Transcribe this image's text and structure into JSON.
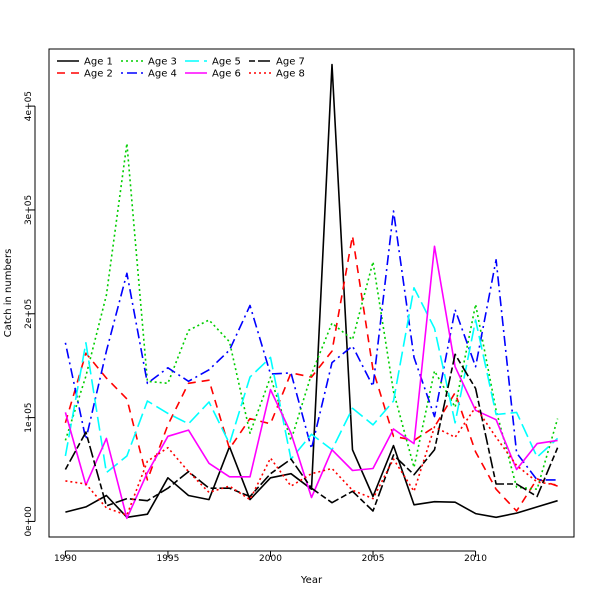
{
  "chart_data": {
    "type": "line",
    "title": "",
    "xlabel": "Year",
    "ylabel": "Catch in numbers",
    "xlim": [
      1989.2,
      2014.8
    ],
    "ylim": [
      -15000,
      455000
    ],
    "x_ticks": [
      1990,
      1995,
      2000,
      2005,
      2010
    ],
    "x_tick_labels": [
      "1990",
      "1995",
      "2000",
      "2005",
      "2010"
    ],
    "y_ticks": [
      0,
      100000,
      200000,
      300000,
      400000
    ],
    "y_tick_labels": [
      "0e+00",
      "1e+05",
      "2e+05",
      "3e+05",
      "4e+05"
    ],
    "legend_position": "top-left",
    "x": [
      1990,
      1991,
      1992,
      1993,
      1994,
      1995,
      1996,
      1997,
      1998,
      1999,
      2000,
      2001,
      2002,
      2003,
      2004,
      2005,
      2006,
      2007,
      2008,
      2009,
      2010,
      2011,
      2012,
      2013,
      2014
    ],
    "series": [
      {
        "name": "Age 1",
        "color": "#000000",
        "dash": "solid",
        "values": [
          9000,
          14000,
          25000,
          4000,
          7000,
          42000,
          25000,
          21000,
          72000,
          21000,
          42000,
          46000,
          31000,
          440000,
          69000,
          24000,
          73000,
          16000,
          19000,
          18500,
          7500,
          4000,
          8000,
          14000,
          20000
        ]
      },
      {
        "name": "Age 2",
        "color": "#ff0000",
        "dash": "dashed",
        "values": [
          95000,
          162000,
          138000,
          118000,
          40000,
          93000,
          133000,
          136000,
          70000,
          99000,
          94000,
          143000,
          139000,
          164000,
          275000,
          146000,
          82000,
          78000,
          91000,
          124000,
          67000,
          31000,
          10000,
          41000,
          34000
        ]
      },
      {
        "name": "Age 3",
        "color": "#00cd00",
        "dash": "dotted",
        "values": [
          78000,
          140000,
          218000,
          364000,
          135000,
          133000,
          184000,
          194000,
          173000,
          85000,
          139000,
          78000,
          142000,
          191000,
          175000,
          250000,
          125000,
          52000,
          145000,
          110000,
          209000,
          107000,
          33000,
          31000,
          99000
        ]
      },
      {
        "name": "Age 4",
        "color": "#0000ff",
        "dash": "dotdash",
        "values": [
          172000,
          79000,
          164000,
          239000,
          133000,
          148000,
          135000,
          146000,
          165000,
          208000,
          142000,
          143000,
          70000,
          153000,
          169000,
          130000,
          299000,
          158000,
          101000,
          204000,
          149000,
          252000,
          66000,
          40000,
          40000
        ]
      },
      {
        "name": "Age 5",
        "color": "#00ffff",
        "dash": "longdash",
        "values": [
          63000,
          172000,
          47000,
          63000,
          116000,
          104000,
          94000,
          115000,
          75000,
          139000,
          158000,
          60000,
          84000,
          69000,
          109000,
          93000,
          116000,
          225000,
          186000,
          95000,
          194000,
          103000,
          105000,
          62000,
          80000
        ]
      },
      {
        "name": "Age 6",
        "color": "#ff00ff",
        "dash": "solid",
        "values": [
          105000,
          35000,
          80000,
          3000,
          47000,
          82000,
          88000,
          56000,
          43000,
          43000,
          127000,
          85000,
          23000,
          69000,
          49000,
          51000,
          89000,
          75000,
          265000,
          149000,
          107000,
          98000,
          50000,
          75000,
          78000
        ]
      },
      {
        "name": "Age 7",
        "color": "#000000",
        "dash": "twodash",
        "values": [
          50000,
          86000,
          15000,
          22000,
          20000,
          32000,
          48000,
          32000,
          32000,
          24000,
          46000,
          60000,
          32000,
          18000,
          29000,
          10000,
          64000,
          45000,
          69000,
          161000,
          128000,
          36000,
          36000,
          24000,
          71000
        ]
      },
      {
        "name": "Age 8",
        "color": "#ff0000",
        "dash": "dotted",
        "values": [
          39000,
          36000,
          13000,
          6000,
          58000,
          71000,
          48000,
          28000,
          34000,
          21000,
          61000,
          34000,
          46000,
          51000,
          30000,
          22000,
          60000,
          29000,
          91000,
          81000,
          110000,
          81000,
          54000,
          38000,
          35000
        ]
      }
    ]
  }
}
